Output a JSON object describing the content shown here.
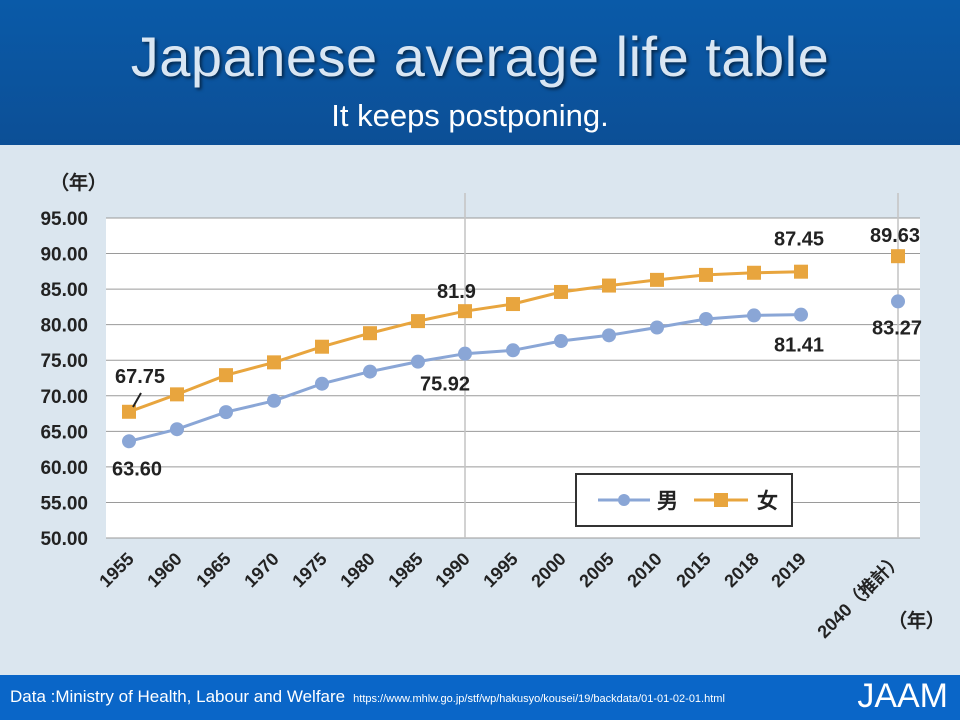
{
  "header": {
    "title": "Japanese average life table",
    "subtitle": "It keeps postponing."
  },
  "footer": {
    "source": "Data :Ministry of Health,  Labour and Welfare",
    "url": "https://www.mhlw.go.jp/stf/wp/hakusyo/kousei/19/backdata/01-01-02-01.html",
    "brand": "JAAM"
  },
  "chart_data": {
    "type": "line",
    "y_unit_label": "（年）",
    "x_unit_label": "（年）",
    "categories": [
      "1955",
      "1960",
      "1965",
      "1970",
      "1975",
      "1980",
      "1985",
      "1990",
      "1995",
      "2000",
      "2005",
      "2010",
      "2015",
      "2018",
      "2019",
      "2040（推計）"
    ],
    "ylim": [
      50,
      95
    ],
    "yticks": [
      "95.00",
      "90.00",
      "85.00",
      "80.00",
      "75.00",
      "70.00",
      "65.00",
      "60.00",
      "55.00",
      "50.00"
    ],
    "grid": true,
    "legend_position": "bottom-right",
    "series": [
      {
        "name": "男",
        "color": "#8aa6d6",
        "marker": "circle",
        "values": [
          63.6,
          65.3,
          67.7,
          69.3,
          71.7,
          73.4,
          74.8,
          75.92,
          76.4,
          77.7,
          78.5,
          79.6,
          80.8,
          81.3,
          81.41,
          83.27
        ]
      },
      {
        "name": "女",
        "color": "#e8a53e",
        "marker": "square",
        "values": [
          67.75,
          70.2,
          72.9,
          74.7,
          76.9,
          78.8,
          80.5,
          81.9,
          82.9,
          84.6,
          85.5,
          86.3,
          87.0,
          87.3,
          87.45,
          89.63
        ]
      }
    ],
    "annotations": [
      {
        "text": "67.75",
        "category": "1955",
        "series": "女"
      },
      {
        "text": "63.60",
        "category": "1955",
        "series": "男"
      },
      {
        "text": "81.9",
        "category": "1990",
        "series": "女"
      },
      {
        "text": "75.92",
        "category": "1990",
        "series": "男"
      },
      {
        "text": "87.45",
        "category": "2019",
        "series": "女"
      },
      {
        "text": "81.41",
        "category": "2019",
        "series": "男"
      },
      {
        "text": "89.63",
        "category": "2040（推計）",
        "series": "女"
      },
      {
        "text": "83.27",
        "category": "2040（推計）",
        "series": "男"
      }
    ]
  }
}
